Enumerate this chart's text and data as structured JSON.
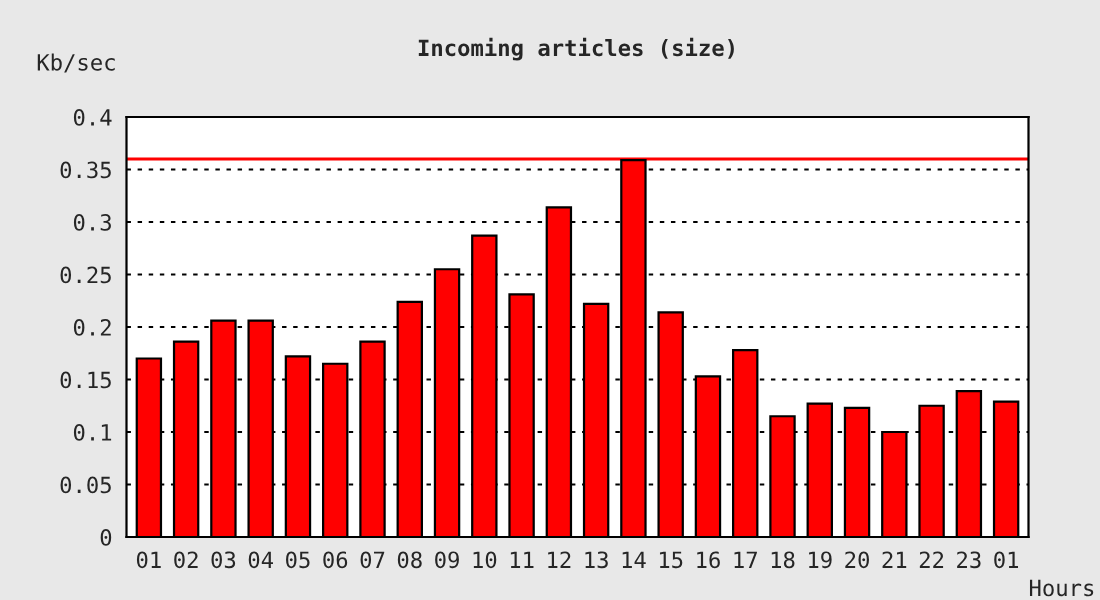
{
  "chart_data": {
    "type": "bar",
    "title": "Incoming articles (size)",
    "ylabel": "Kb/sec",
    "xlabel": "Hours",
    "categories": [
      "01",
      "02",
      "03",
      "04",
      "05",
      "06",
      "07",
      "08",
      "09",
      "10",
      "11",
      "12",
      "13",
      "14",
      "15",
      "16",
      "17",
      "18",
      "19",
      "20",
      "21",
      "22",
      "23",
      "01"
    ],
    "values": [
      0.17,
      0.186,
      0.206,
      0.206,
      0.172,
      0.165,
      0.186,
      0.224,
      0.255,
      0.287,
      0.231,
      0.314,
      0.222,
      0.359,
      0.214,
      0.153,
      0.178,
      0.115,
      0.127,
      0.123,
      0.1,
      0.125,
      0.139,
      0.129
    ],
    "color": "#ff0000",
    "ylim": [
      0,
      0.4
    ],
    "yticks": [
      0,
      0.05,
      0.1,
      0.15,
      0.2,
      0.25,
      0.3,
      0.35,
      0.4
    ],
    "grid": "y",
    "ref_lines": [
      {
        "axis": "y",
        "value": 0.36,
        "color": "#ff0000"
      }
    ]
  }
}
